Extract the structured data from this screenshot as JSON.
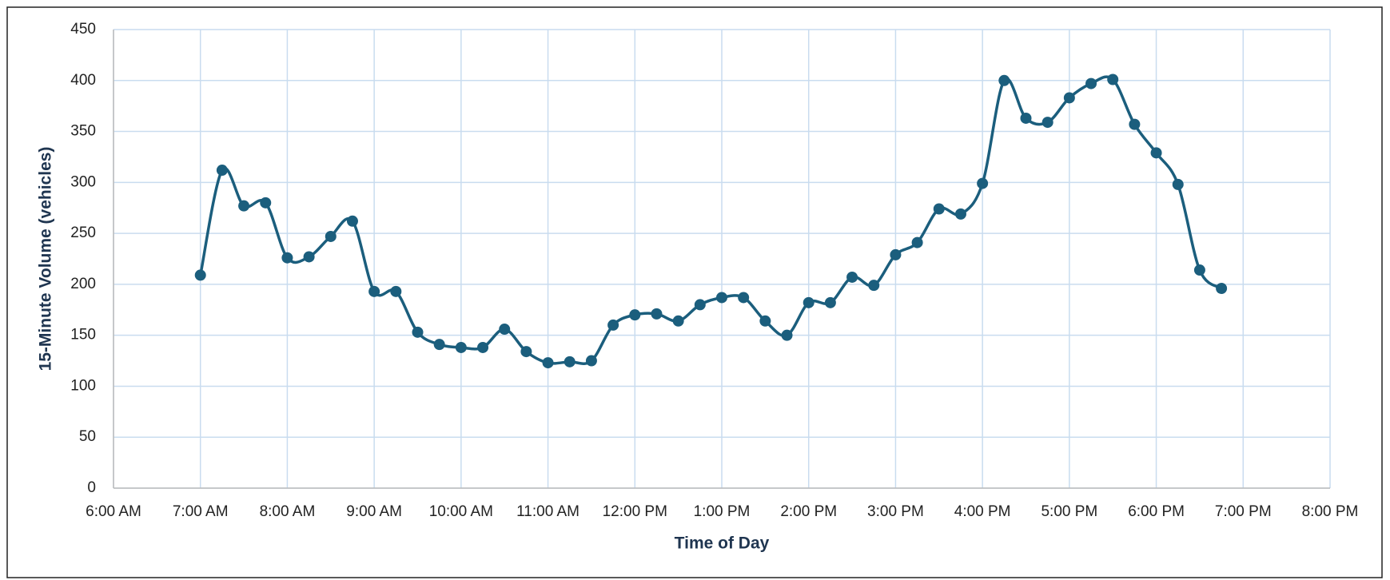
{
  "chart_data": {
    "type": "line",
    "xlabel": "Time of Day",
    "ylabel": "15-Minute Volume (vehicles)",
    "x": [
      7,
      7.25,
      7.5,
      7.75,
      8,
      8.25,
      8.5,
      8.75,
      9,
      9.25,
      9.5,
      9.75,
      10,
      10.25,
      10.5,
      10.75,
      11,
      11.25,
      11.5,
      11.75,
      12,
      12.25,
      12.5,
      12.75,
      13,
      13.25,
      13.5,
      13.75,
      14,
      14.25,
      14.5,
      14.75,
      15,
      15.25,
      15.5,
      15.75,
      16,
      16.25,
      16.5,
      16.75,
      17,
      17.25,
      17.5,
      17.75,
      18,
      18.25,
      18.5,
      18.75
    ],
    "series": [
      {
        "name": "15-Minute Volume",
        "color": "#1b5e7d",
        "values": [
          209,
          312,
          277,
          280,
          226,
          227,
          247,
          262,
          193,
          193,
          153,
          141,
          138,
          138,
          156,
          134,
          123,
          124,
          125,
          160,
          170,
          171,
          164,
          180,
          187,
          187,
          164,
          150,
          182,
          182,
          207,
          199,
          229,
          241,
          274,
          269,
          299,
          400,
          363,
          359,
          383,
          397,
          401,
          357,
          329,
          298,
          214,
          196
        ]
      }
    ],
    "xlim": [
      6,
      20
    ],
    "xticks": [
      {
        "value": 6,
        "label": "6:00 AM"
      },
      {
        "value": 7,
        "label": "7:00 AM"
      },
      {
        "value": 8,
        "label": "8:00 AM"
      },
      {
        "value": 9,
        "label": "9:00 AM"
      },
      {
        "value": 10,
        "label": "10:00 AM"
      },
      {
        "value": 11,
        "label": "11:00 AM"
      },
      {
        "value": 12,
        "label": "12:00 PM"
      },
      {
        "value": 13,
        "label": "1:00 PM"
      },
      {
        "value": 14,
        "label": "2:00 PM"
      },
      {
        "value": 15,
        "label": "3:00 PM"
      },
      {
        "value": 16,
        "label": "4:00 PM"
      },
      {
        "value": 17,
        "label": "5:00 PM"
      },
      {
        "value": 18,
        "label": "6:00 PM"
      },
      {
        "value": 19,
        "label": "7:00 PM"
      },
      {
        "value": 20,
        "label": "8:00 PM"
      }
    ],
    "ylim": [
      0,
      450
    ],
    "yticks": [
      0,
      50,
      100,
      150,
      200,
      250,
      300,
      350,
      400,
      450
    ],
    "grid": true
  }
}
